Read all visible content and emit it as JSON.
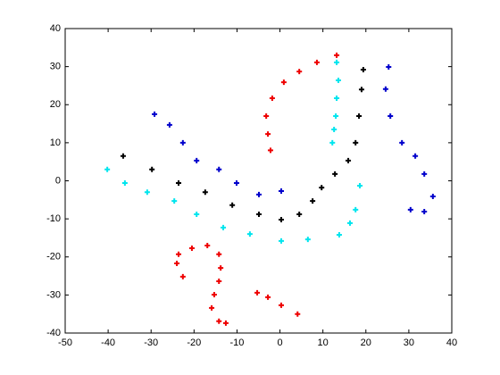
{
  "chart_data": {
    "type": "scatter",
    "xlim": [
      -50,
      40
    ],
    "xticks": [
      -50,
      -40,
      -30,
      -20,
      -10,
      0,
      10,
      20,
      30,
      40
    ],
    "ylim": [
      -40,
      40
    ],
    "yticks": [
      -40,
      -30,
      -20,
      -10,
      0,
      10,
      20,
      30,
      40
    ],
    "grid": false,
    "series": [
      {
        "color": "#000000",
        "x": [
          -36.5,
          -29.8,
          -23.6,
          -17.4,
          -11.1,
          -4.9,
          0.3,
          4.5,
          7.6,
          9.7,
          12.8,
          15.9,
          17.6,
          18.4,
          19,
          19.4
        ],
        "values": [
          6.5,
          3,
          -0.6,
          -3,
          -6.4,
          -8.8,
          -10.2,
          -8.8,
          -5.3,
          -1.8,
          1.8,
          5.3,
          10,
          17,
          24,
          29.2
        ]
      },
      {
        "color": "#00e5ee",
        "x": [
          -40.2,
          -36.1,
          -30.9,
          -24.6,
          -19.4,
          -13.2,
          -7,
          0.3,
          6.5,
          13.8,
          16.3,
          17.6,
          18.6
        ],
        "values": [
          3,
          -0.6,
          -3,
          -5.3,
          -8.8,
          -12.3,
          -14,
          -15.8,
          -15.4,
          -14.2,
          -11.1,
          -7.6,
          -1.3
        ]
      },
      {
        "color": "#00e5ee",
        "x": [
          13.2,
          13.6,
          13.2,
          13,
          12.6,
          12.2
        ],
        "values": [
          31.1,
          26.4,
          21.7,
          17,
          13.5,
          10
        ]
      },
      {
        "color": "#ee0000",
        "x": [
          13.2,
          8.6,
          4.5,
          0.9,
          -1.8,
          -3.2,
          -2.8,
          -2.2
        ],
        "values": [
          33,
          31.1,
          28.7,
          25.9,
          21.7,
          17,
          12.3,
          8
        ]
      },
      {
        "color": "#ee0000",
        "x": [
          -22.6,
          -24,
          -23.6,
          -20.5,
          -16.9,
          -14.2,
          -13.8,
          -14.2,
          -15.3,
          -15.9,
          -14.2,
          -12.6
        ],
        "values": [
          -25.2,
          -21.7,
          -19.3,
          -17.7,
          -17,
          -19.3,
          -22.9,
          -26.4,
          -29.9,
          -33.4,
          -36.9,
          -37.4
        ]
      },
      {
        "color": "#ee0000",
        "x": [
          -5.3,
          -2.8,
          0.3,
          4.1
        ],
        "values": [
          -29.4,
          -30.6,
          -32.7,
          -35
        ]
      },
      {
        "color": "#0000cc",
        "x": [
          -29.2,
          -25.7,
          -22.6,
          -19.4,
          -14.2,
          -10.1,
          -4.9,
          0.3
        ],
        "values": [
          17.5,
          14.7,
          10,
          5.3,
          3,
          -0.6,
          -3.6,
          -2.7
        ]
      },
      {
        "color": "#0000cc",
        "x": [
          25.3,
          24.6,
          25.7,
          28.4,
          31.5,
          33.6,
          35.6,
          33.6,
          30.4
        ],
        "values": [
          29.9,
          24.1,
          17,
          10,
          6.5,
          1.8,
          -4.1,
          -8.1,
          -7.6
        ]
      }
    ]
  }
}
